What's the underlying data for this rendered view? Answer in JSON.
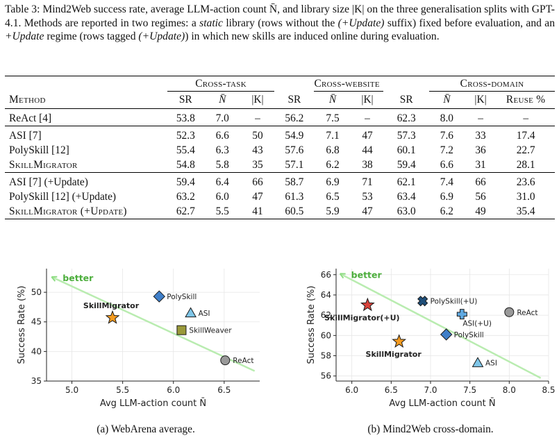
{
  "caption": {
    "prefix": "Table 3: Mind2Web success rate, average LLM-action count N̄, and library size |K| on the three generalisation splits with GPT-4.1. Methods are reported in two regimes: a ",
    "static_word": "static",
    "middle": " library (rows without the ",
    "suffix_word": "(+Update)",
    "middle2": " suffix) fixed before evaluation, and an ",
    "update_word": "+Update",
    "middle3": " regime (rows tagged ",
    "tagged_word": "(+Update)",
    "end": ") in which new skills are induced online during evaluation."
  },
  "table": {
    "groups": [
      "Cross-task",
      "Cross-website",
      "Cross-domain"
    ],
    "columns": [
      "Method",
      "SR",
      "N̄",
      "|K|",
      "SR",
      "N̄",
      "|K|",
      "SR",
      "N̄",
      "|K|",
      "Reuse %"
    ],
    "blocks": [
      [
        {
          "method": "ReAct [4]",
          "smallcaps": false,
          "cells": [
            "53.8",
            "7.0",
            "–",
            "56.2",
            "7.5",
            "–",
            "62.3",
            "8.0",
            "–",
            "–"
          ],
          "bold": []
        }
      ],
      [
        {
          "method": "ASI [7]",
          "smallcaps": false,
          "cells": [
            "52.3",
            "6.6",
            "50",
            "54.9",
            "7.1",
            "47",
            "57.3",
            "7.6",
            "33",
            "17.4"
          ],
          "bold": []
        },
        {
          "method": "PolySkill [12]",
          "smallcaps": false,
          "cells": [
            "55.4",
            "6.3",
            "43",
            "57.6",
            "6.8",
            "44",
            "60.1",
            "7.2",
            "36",
            "22.7"
          ],
          "bold": []
        },
        {
          "method": "SkillMigrator",
          "smallcaps": true,
          "cells": [
            "54.8",
            "5.8",
            "35",
            "57.1",
            "6.2",
            "38",
            "59.4",
            "6.6",
            "31",
            "28.1"
          ],
          "bold": [
            1,
            2,
            4,
            5,
            7,
            8,
            9
          ]
        }
      ],
      [
        {
          "method": "ASI [7] (+Update)",
          "smallcaps": false,
          "cells": [
            "59.4",
            "6.4",
            "66",
            "58.7",
            "6.9",
            "71",
            "62.1",
            "7.4",
            "66",
            "23.6"
          ],
          "bold": []
        },
        {
          "method": "PolySkill [12] (+Update)",
          "smallcaps": false,
          "cells": [
            "63.2",
            "6.0",
            "47",
            "61.3",
            "6.5",
            "53",
            "63.4",
            "6.9",
            "56",
            "31.0"
          ],
          "bold": []
        },
        {
          "method": "SkillMigrator (+Update)",
          "smallcaps": true,
          "cells": [
            "62.7",
            "5.5",
            "41",
            "60.5",
            "5.9",
            "47",
            "63.0",
            "6.2",
            "49",
            "35.4"
          ],
          "bold": [
            1,
            2,
            4,
            5,
            7,
            8,
            9
          ]
        }
      ]
    ]
  },
  "chart_data": [
    {
      "type": "scatter",
      "xlabel": "Avg LLM-action count N̄",
      "ylabel": "Success Rate (%)",
      "xlim": [
        4.75,
        6.85
      ],
      "ylim": [
        35,
        54
      ],
      "xticks": [
        "5.0",
        "5.5",
        "6.0",
        "6.5",
        "7.0"
      ],
      "yticks": [
        "35",
        "40",
        "45",
        "50"
      ],
      "grid": true,
      "annotation": "better",
      "arrow": {
        "from": [
          6.8,
          36.7
        ],
        "to": [
          4.8,
          52.6
        ]
      },
      "points": [
        {
          "name": "PolySkill",
          "x": 5.86,
          "y": 49.3,
          "marker": "diamond",
          "color": "#3f7fc9",
          "label_side": "right",
          "bold": false
        },
        {
          "name": "ASI",
          "x": 6.17,
          "y": 46.5,
          "marker": "triangle",
          "color": "#7fc6e8",
          "label_side": "right",
          "bold": false
        },
        {
          "name": "SkillMigrator",
          "x": 5.4,
          "y": 45.7,
          "marker": "star",
          "color": "#f59b1f",
          "label_side": "above",
          "bold": true
        },
        {
          "name": "SkillWeaver",
          "x": 6.08,
          "y": 43.6,
          "marker": "square",
          "color": "#9a9a3a",
          "label_side": "right",
          "bold": false
        },
        {
          "name": "ReAct",
          "x": 6.51,
          "y": 38.5,
          "marker": "circle",
          "color": "#999999",
          "label_side": "right",
          "bold": false
        }
      ],
      "subcaption": "(a) WebArena average."
    },
    {
      "type": "scatter",
      "xlabel": "Avg LLM-action count N̄",
      "ylabel": "Success Rate (%)",
      "xlim": [
        5.8,
        8.5
      ],
      "ylim": [
        55.5,
        66.6
      ],
      "xticks": [
        "6.0",
        "6.5",
        "7.0",
        "7.5",
        "8.0",
        "8.5"
      ],
      "yticks": [
        "56",
        "58",
        "60",
        "62",
        "64",
        "66"
      ],
      "grid": true,
      "annotation": "better",
      "arrow": {
        "from": [
          8.4,
          55.8
        ],
        "to": [
          5.85,
          66.1
        ]
      },
      "points": [
        {
          "name": "PolySkill(+U)",
          "x": 6.9,
          "y": 63.4,
          "marker": "x",
          "color": "#1f4e79",
          "label_side": "right",
          "bold": false
        },
        {
          "name": "SkillMigrator(+U)",
          "x": 6.2,
          "y": 63.0,
          "marker": "star",
          "color": "#d9433b",
          "label_side": "below",
          "bold": true
        },
        {
          "name": "ReAct",
          "x": 8.0,
          "y": 62.3,
          "marker": "circle",
          "color": "#999999",
          "label_side": "right",
          "bold": false
        },
        {
          "name": "ASI(+U)",
          "x": 7.4,
          "y": 62.1,
          "marker": "plus",
          "color": "#5fa8e0",
          "label_side": "below-right",
          "bold": false
        },
        {
          "name": "PolySkill",
          "x": 7.2,
          "y": 60.1,
          "marker": "diamond",
          "color": "#3f7fc9",
          "label_side": "right",
          "bold": false
        },
        {
          "name": "SkillMigrator",
          "x": 6.6,
          "y": 59.4,
          "marker": "star",
          "color": "#f59b1f",
          "label_side": "below",
          "bold": true
        },
        {
          "name": "ASI",
          "x": 7.6,
          "y": 57.3,
          "marker": "triangle",
          "color": "#7fc6e8",
          "label_side": "right",
          "bold": false
        }
      ],
      "subcaption": "(b) Mind2Web cross-domain."
    }
  ]
}
